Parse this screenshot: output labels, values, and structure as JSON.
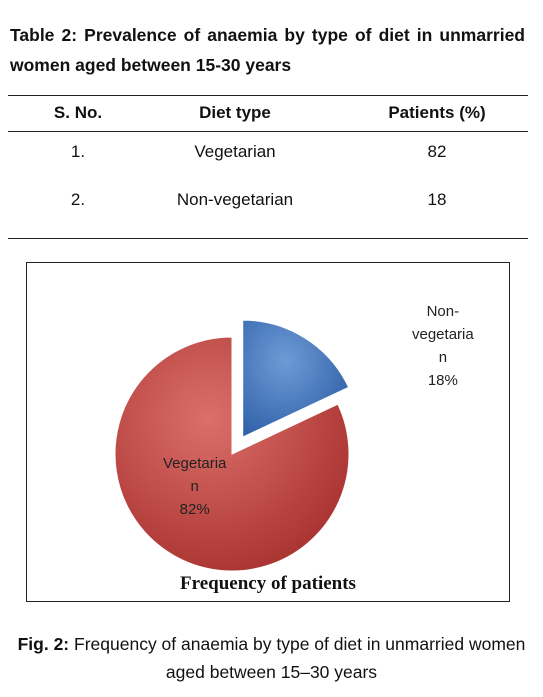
{
  "table": {
    "caption": "Table 2: Prevalence of anaemia by type of diet in unmarried women aged between 15-30 years",
    "headers": [
      "S. No.",
      "Diet type",
      "Patients (%)"
    ],
    "rows": [
      [
        "1.",
        "Vegetarian",
        "82"
      ],
      [
        "2.",
        "Non-vegetarian",
        "18"
      ]
    ]
  },
  "figure": {
    "label": "Fig. 2:",
    "caption": "Frequency of anaemia by type of diet in unmarried women aged between 15–30 years"
  },
  "chart_data": {
    "type": "pie",
    "title": "Frequency of patients",
    "slices": [
      {
        "name": "Non-vegetarian",
        "value": 18,
        "color": "#3b6fbb",
        "label_lines": [
          "Non-",
          "vegetaria",
          "n"
        ],
        "pct_label": "18%",
        "exploded": true
      },
      {
        "name": "Vegetarian",
        "value": 82,
        "color": "#c4403e",
        "label_lines": [
          "Vegetaria",
          "n"
        ],
        "pct_label": "82%",
        "exploded": false
      }
    ]
  }
}
